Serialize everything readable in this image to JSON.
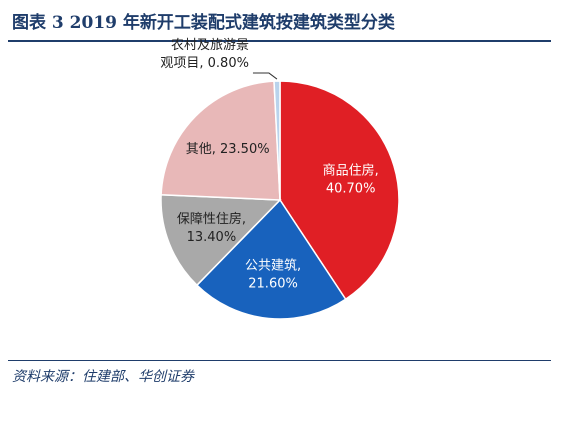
{
  "figure": {
    "title": "图表 3  2019 年新开工装配式建筑按建筑类型分类",
    "source": "资料来源：住建部、华创证券"
  },
  "chart_data": {
    "type": "pie",
    "title": "",
    "slices": [
      {
        "label_lines": [
          "商品住房,",
          "40.70%"
        ],
        "value": 40.7,
        "color": "#e01f25",
        "text_color": "#ffffff"
      },
      {
        "label_lines": [
          "公共建筑,",
          "21.60%"
        ],
        "value": 21.6,
        "color": "#1862bd",
        "text_color": "#ffffff"
      },
      {
        "label_lines": [
          "保障性住房,",
          "13.40%"
        ],
        "value": 13.4,
        "color": "#a9a9a9",
        "text_color": "#222222"
      },
      {
        "label_lines": [
          "其他, 23.50%"
        ],
        "value": 23.5,
        "color": "#e8b8b8",
        "text_color": "#222222"
      },
      {
        "label_lines": [
          "农村及旅游景",
          "观项目, 0.80%"
        ],
        "value": 0.8,
        "color": "#b9d3ec",
        "text_color": "#222222",
        "callout": true
      }
    ]
  }
}
